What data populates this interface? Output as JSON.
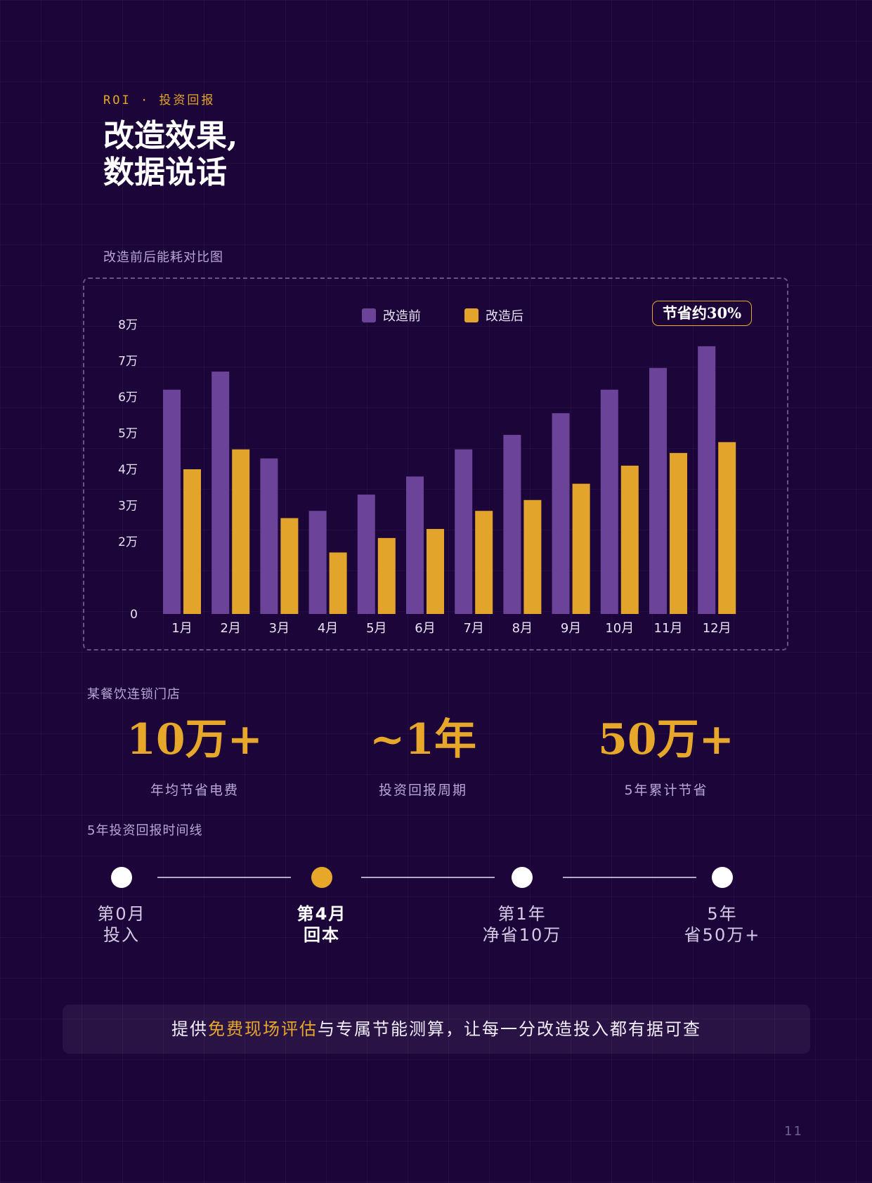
{
  "header": {
    "eyebrow": "ROI · 投资回报",
    "title_line1": "改造效果,",
    "title_line2": "数据说话"
  },
  "chart_caption": "改造前后能耗对比图",
  "chart_data": {
    "type": "bar",
    "title": "",
    "xlabel": "",
    "ylabel": "",
    "categories": [
      "1月",
      "2月",
      "3月",
      "4月",
      "5月",
      "6月",
      "7月",
      "8月",
      "9月",
      "10月",
      "11月",
      "12月"
    ],
    "series": [
      {
        "name": "改造前",
        "color": "#6b449a",
        "values": [
          62000,
          67000,
          43000,
          28500,
          33000,
          38000,
          45500,
          49500,
          55500,
          62000,
          68000,
          74000
        ]
      },
      {
        "name": "改造后",
        "color": "#e3a42c",
        "values": [
          40000,
          45500,
          26500,
          17000,
          21000,
          23500,
          28500,
          31500,
          36000,
          41000,
          44500,
          47500
        ]
      }
    ],
    "ylim": [
      0,
      80000
    ],
    "y_ticks": [
      {
        "value": 0,
        "label": "0"
      },
      {
        "value": 20000,
        "label": "2万"
      },
      {
        "value": 30000,
        "label": "3万"
      },
      {
        "value": 40000,
        "label": "4万"
      },
      {
        "value": 50000,
        "label": "5万"
      },
      {
        "value": 60000,
        "label": "6万"
      },
      {
        "value": 70000,
        "label": "7万"
      },
      {
        "value": 80000,
        "label": "8万"
      }
    ],
    "grid": false,
    "legend_position": "top-right",
    "annotation": "节省约30%"
  },
  "case_label": "某餐饮连锁门店",
  "stats": [
    {
      "value": "10万+",
      "label": "年均节省电费"
    },
    {
      "value": "~1年",
      "label": "投资回报周期"
    },
    {
      "value": "50万+",
      "label": "5年累计节省"
    }
  ],
  "timeline": {
    "label": "5年投资回报时间线",
    "milestones": [
      {
        "line1": "第0月",
        "line2": "投入",
        "highlight": false
      },
      {
        "line1": "第4月",
        "line2": "回本",
        "highlight": true
      },
      {
        "line1": "第1年",
        "line2": "净省10万",
        "highlight": false
      },
      {
        "line1": "5年",
        "line2": "省50万+",
        "highlight": false
      }
    ]
  },
  "cta": {
    "prefix": "提供",
    "highlight": "免费现场评估",
    "suffix": "与专属节能测算，让每一分改造投入都有据可查"
  },
  "page_number": "11",
  "colors": {
    "background": "#1c0539",
    "accent": "#e6a72a",
    "before": "#6b449a",
    "after": "#e3a42c"
  }
}
